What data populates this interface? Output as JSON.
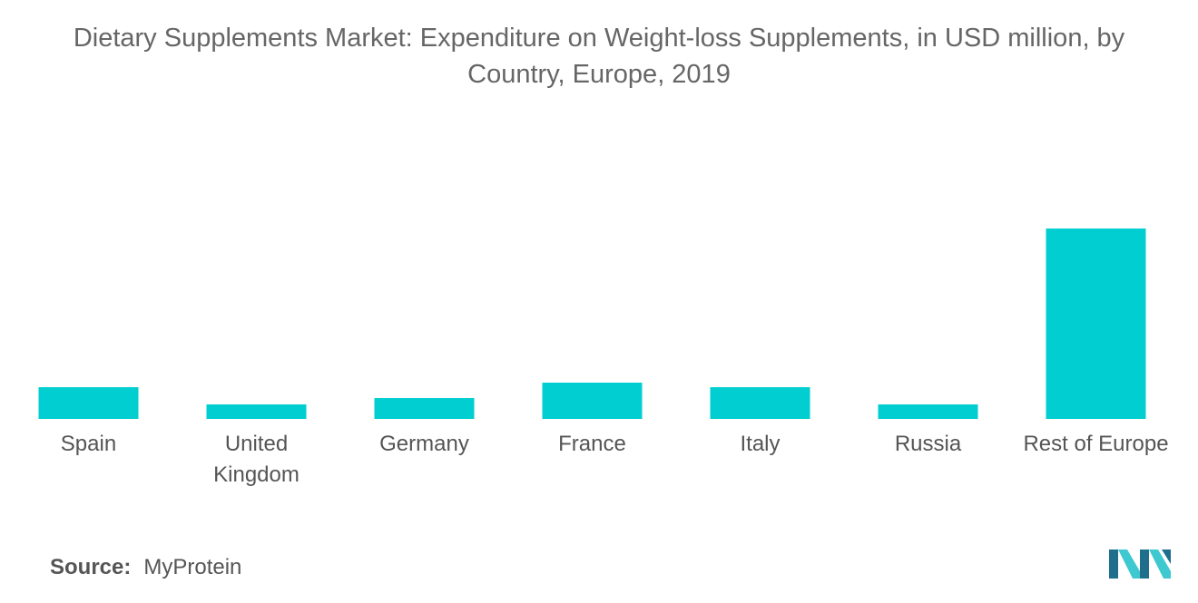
{
  "title_line1": "Dietary Supplements Market: Expenditure on Weight-loss Supplements, in USD million, by",
  "title_line2": "Country, Europe, 2019",
  "source": {
    "label": "Source:",
    "value": "MyProtein"
  },
  "logo": {
    "icon": "mordor-intelligence-logo-icon"
  },
  "colors": {
    "bar": "#00ced1",
    "text": "#555555",
    "logo_dark": "#1f6e8c",
    "logo_light": "#3ec8d0"
  },
  "chart_data": {
    "type": "bar",
    "title": "Dietary Supplements Market: Expenditure on Weight-loss Supplements, in USD million, by Country, Europe, 2019",
    "categories": [
      "Spain",
      "United Kingdom",
      "Germany",
      "France",
      "Italy",
      "Russia",
      "Rest of Europe"
    ],
    "category_lines": [
      [
        "Spain"
      ],
      [
        "United",
        "Kingdom"
      ],
      [
        "Germany"
      ],
      [
        "France"
      ],
      [
        "Italy"
      ],
      [
        "Russia"
      ],
      [
        "Rest of Europe"
      ]
    ],
    "values": [
      35,
      16,
      23,
      40,
      35,
      16,
      210
    ],
    "xlabel": "",
    "ylabel": "",
    "ylim": [
      0,
      210
    ],
    "grid": false,
    "legend": "none"
  }
}
